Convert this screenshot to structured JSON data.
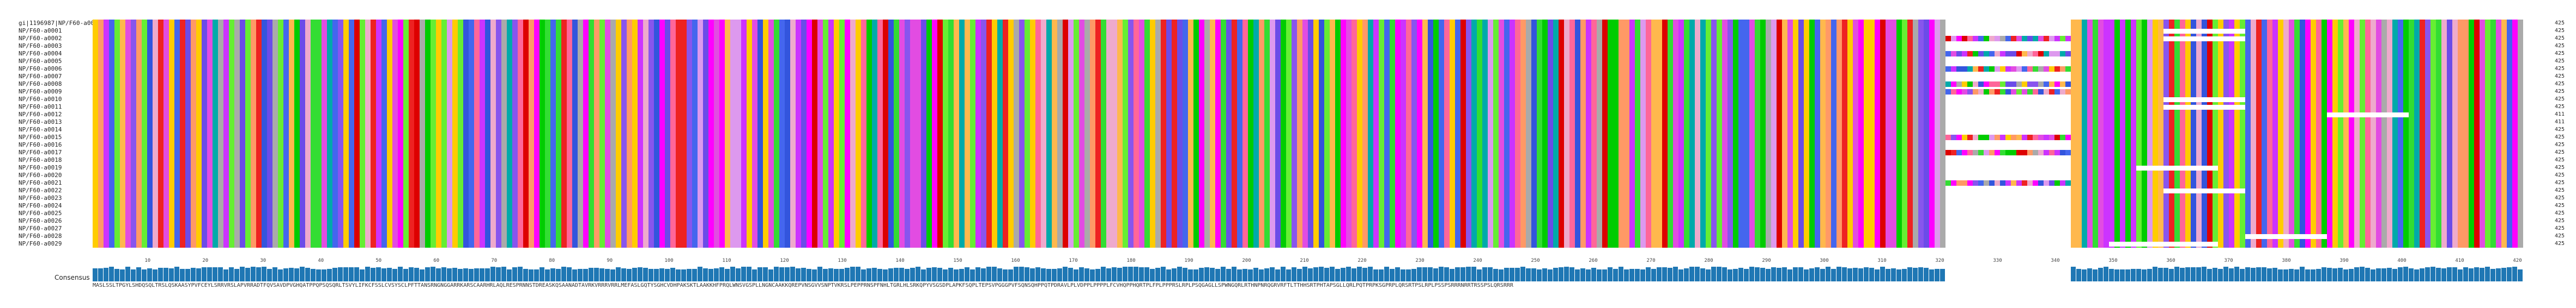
{
  "app": {
    "title": ""
  },
  "alignment": {
    "rows": [
      {
        "name": "gi|1196987|NP/F60-a0001",
        "end": "425"
      },
      {
        "name": "NP/F60-a0001",
        "end": "425"
      },
      {
        "name": "NP/F60-a0002",
        "end": "425"
      },
      {
        "name": "NP/F60-a0003",
        "end": "425"
      },
      {
        "name": "NP/F60-a0004",
        "end": "425"
      },
      {
        "name": "NP/F60-a0005",
        "end": "425"
      },
      {
        "name": "NP/F60-a0006",
        "end": "425"
      },
      {
        "name": "NP/F60-a0007",
        "end": "425"
      },
      {
        "name": "NP/F60-a0008",
        "end": "425"
      },
      {
        "name": "NP/F60-a0009",
        "end": "425"
      },
      {
        "name": "NP/F60-a0010",
        "end": "425"
      },
      {
        "name": "NP/F60-a0011",
        "end": "425"
      },
      {
        "name": "NP/F60-a0012",
        "end": "411"
      },
      {
        "name": "NP/F60-a0013",
        "end": "411"
      },
      {
        "name": "NP/F60-a0014",
        "end": "425"
      },
      {
        "name": "NP/F60-a0015",
        "end": "425"
      },
      {
        "name": "NP/F60-a0016",
        "end": "425"
      },
      {
        "name": "NP/F60-a0017",
        "end": "425"
      },
      {
        "name": "NP/F60-a0018",
        "end": "425"
      },
      {
        "name": "NP/F60-a0019",
        "end": "425"
      },
      {
        "name": "NP/F60-a0020",
        "end": "425"
      },
      {
        "name": "NP/F60-a0021",
        "end": "425"
      },
      {
        "name": "NP/F60-a0022",
        "end": "425"
      },
      {
        "name": "NP/F60-a0023",
        "end": "425"
      },
      {
        "name": "NP/F60-a0024",
        "end": "425"
      },
      {
        "name": "NP/F60-a0025",
        "end": "425"
      },
      {
        "name": "NP/F60-a0026",
        "end": "425"
      },
      {
        "name": "NP/F60-a0027",
        "end": "425"
      },
      {
        "name": "NP/F60-a0028",
        "end": "425"
      },
      {
        "name": "NP/F60-a0029",
        "end": "425"
      }
    ],
    "ruler_ticks": [
      "10",
      "20",
      "30",
      "40",
      "50",
      "60",
      "70",
      "80",
      "90",
      "100",
      "110",
      "120",
      "130",
      "140",
      "150",
      "160",
      "170",
      "180",
      "190",
      "200",
      "210",
      "220",
      "230",
      "240",
      "250",
      "260",
      "270",
      "280",
      "290",
      "300",
      "310",
      "320",
      "330",
      "340",
      "350",
      "360",
      "370",
      "380",
      "390",
      "400",
      "410",
      "420"
    ],
    "consensus_label": "Consensus",
    "consensus_sequence": "MASLSSLTPGYLSHDQSQLTRSLQSKAASYPVFCEYLSRRVRSLAPVRRADTFQVSAVDPVGHQATPPQPSQSQRLTSVYLIFKCFSSLCVSYSCLPFTTANSRNGNGGARRKARSCAARHRLAQLRESPRNNSTDREASKQSAANADTAVRKVRRRVRRLMEFASLGQTYSGHCVDHPAKSKTLAAKKHFPRQLWNSVGSPLLNGNCAAKKQREPVNSGVVSNPTVKRSLPEPPRNSPFNHLTGRLHLSRKQPYVSGSDPLAPKFSQPLTEPSVPGGGPVFSQNSQHPPQTPDRAVLPLVDPPLPPPPLFCVHQPPHQRTPLFPLPPPRSLRPLPSQGAGLLSPWNGQRLRTHNPNRQGRVRFTLTTHHSRTPHTAPSGLLQRLPQTPRPKSGPRPLQRSRTPSLRPLPSSPSRRRNRRTRSSPSLQRSRRR",
    "palette": [
      "#ff00ff",
      "#e24ce2",
      "#cc33ff",
      "#6b4ce8",
      "#4466ee",
      "#3355dd",
      "#00cc00",
      "#33dd33",
      "#66ee33",
      "#ffcc00",
      "#ffb84d",
      "#ff9966",
      "#dd0000",
      "#ee2222",
      "#ff6699",
      "#eeaacc",
      "#dd99ee",
      "#8855ee",
      "#00aaaa",
      "#aaaaaa"
    ],
    "bar_color": "#1f77b4"
  }
}
